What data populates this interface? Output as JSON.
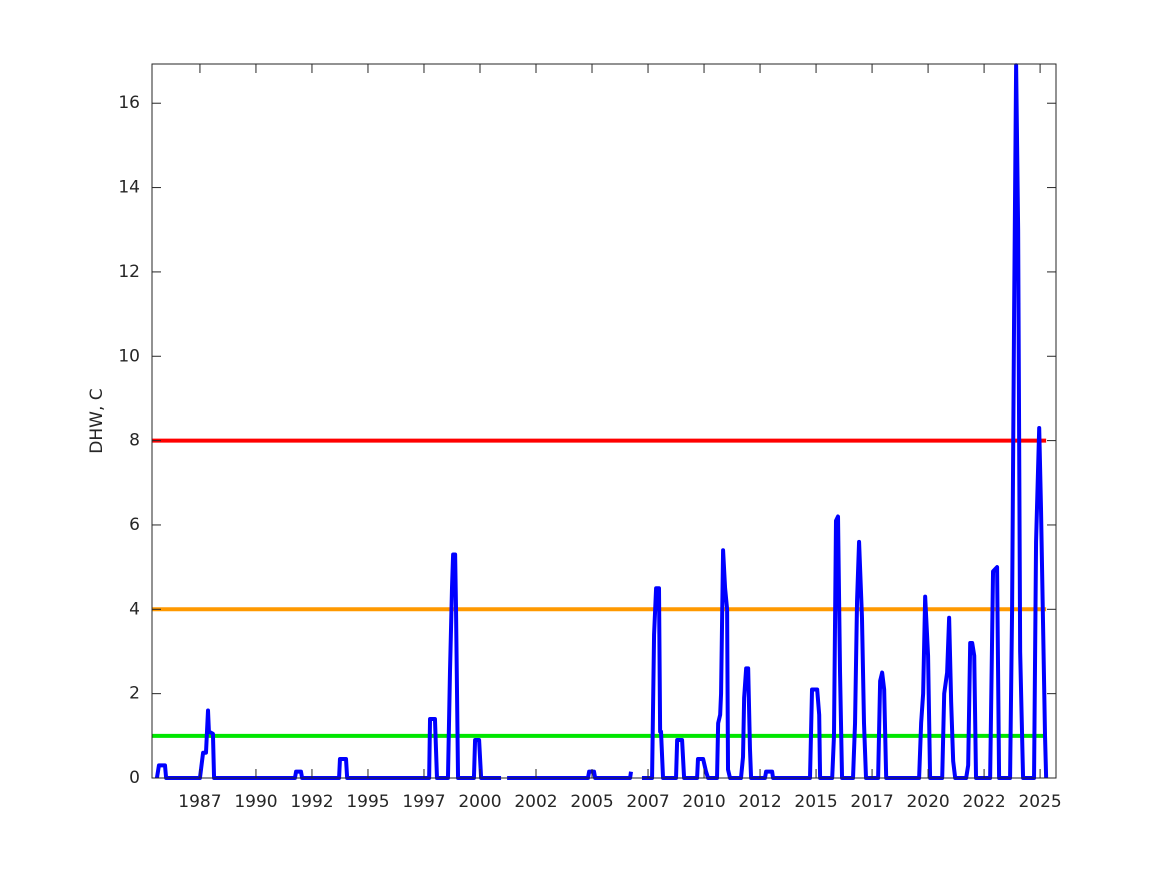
{
  "chart_data": {
    "type": "line",
    "ylabel": "DHW, C",
    "xlim": [
      1985.36,
      2025.71
    ],
    "ylim": [
      0,
      16.93
    ],
    "xticks": [
      {
        "value": 1987.5,
        "label": "1987"
      },
      1990,
      {
        "value": 1992.5,
        "label": "1992"
      },
      1995,
      {
        "value": 1997.5,
        "label": "1997"
      },
      2000,
      {
        "value": 2002.5,
        "label": "2002"
      },
      2005,
      {
        "value": 2007.5,
        "label": "2007"
      },
      2010,
      {
        "value": 2012.5,
        "label": "2012"
      },
      2015,
      {
        "value": 2017.5,
        "label": "2017"
      },
      2020,
      {
        "value": 2022.5,
        "label": "2022"
      },
      2025
    ],
    "yticks": [
      0,
      2,
      4,
      6,
      8,
      10,
      12,
      14,
      16
    ],
    "thresholds": [
      {
        "value": 1,
        "color": "#00e600"
      },
      {
        "value": 4,
        "color": "#ff9900"
      },
      {
        "value": 8,
        "color": "#ff0000"
      }
    ],
    "x": [
      1985.58,
      1985.67,
      1985.94,
      1985.99,
      1987.5,
      1987.64,
      1987.77,
      1987.86,
      1987.9,
      1988.08,
      1988.13,
      1991.74,
      1991.79,
      1992.01,
      1992.06,
      1993.71,
      1993.75,
      1994.02,
      1994.07,
      1997.73,
      1997.77,
      1997.99,
      1998.08,
      1998.57,
      1998.66,
      1998.75,
      1998.8,
      1998.89,
      1998.93,
      1999.02,
      1999.73,
      1999.78,
      1999.96,
      2000.05,
      2000.94,
      null,
      2001.21,
      2004.82,
      2004.87,
      2005.09,
      2005.14,
      2006.7,
      2006.74,
      null,
      2007.23,
      2007.68,
      2007.77,
      2007.86,
      2007.99,
      2008.04,
      2008.08,
      2008.17,
      2008.75,
      2008.8,
      2009.02,
      2009.11,
      2009.69,
      2009.73,
      2009.96,
      2010.09,
      2010.18,
      2010.58,
      2010.63,
      2010.72,
      2010.76,
      2010.85,
      2010.94,
      2011.03,
      2011.07,
      2011.16,
      2011.65,
      2011.74,
      2011.79,
      2011.88,
      2011.97,
      2012.05,
      2012.1,
      2012.72,
      2012.77,
      2013.04,
      2013.08,
      2014.73,
      2014.82,
      2015.05,
      2015.14,
      2015.18,
      2015.72,
      2015.8,
      2015.89,
      2015.98,
      2016.07,
      2016.16,
      2016.65,
      2016.74,
      2016.83,
      2016.92,
      2017.05,
      2017.14,
      2017.23,
      2017.77,
      2017.86,
      2017.95,
      2018.04,
      2018.13,
      2019.6,
      2019.69,
      2019.78,
      2019.87,
      2020.0,
      2020.09,
      2020.63,
      2020.72,
      2020.85,
      2020.94,
      2021.03,
      2021.12,
      2021.21,
      2021.7,
      2021.79,
      2021.88,
      2021.97,
      2022.06,
      2022.14,
      2022.77,
      2022.9,
      2023.08,
      2023.17,
      2023.66,
      2023.75,
      2023.84,
      2023.93,
      2024.02,
      2024.11,
      2024.24,
      2024.73,
      2024.82,
      2024.96,
      2025.04,
      2025.13,
      2025.22,
      2025.27
    ],
    "series": [
      {
        "color": "#0000ff",
        "values": [
          0,
          0.3,
          0.3,
          0,
          0,
          0.6,
          0.6,
          1.6,
          1.1,
          1.05,
          0,
          0,
          0.15,
          0.15,
          0,
          0,
          0.45,
          0.45,
          0,
          0,
          1.4,
          1.4,
          0,
          0,
          2.5,
          4.5,
          5.3,
          5.3,
          4,
          0,
          0,
          0.9,
          0.9,
          0,
          0,
          null,
          0,
          0,
          0.15,
          0.15,
          0,
          0,
          0.15,
          null,
          0,
          0,
          3.4,
          4.5,
          4.5,
          1.1,
          1.1,
          0,
          0,
          0.9,
          0.9,
          0,
          0,
          0.45,
          0.45,
          0.15,
          0,
          0,
          1.3,
          1.5,
          2,
          5.4,
          4.5,
          4,
          0.2,
          0,
          0,
          0.5,
          1.9,
          2.6,
          2.6,
          0.7,
          0,
          0,
          0.15,
          0.15,
          0,
          0,
          2.1,
          2.1,
          1.5,
          0,
          0,
          1,
          6.1,
          6.2,
          2.5,
          0,
          0,
          1.3,
          4.2,
          5.6,
          3.8,
          1.3,
          0,
          0,
          2.3,
          2.5,
          2.1,
          0,
          0,
          1.3,
          2,
          4.3,
          2.9,
          0,
          0,
          2,
          2.5,
          3.8,
          1.8,
          0.4,
          0,
          0,
          0.3,
          3.2,
          3.2,
          2.9,
          0,
          0,
          4.9,
          5,
          0,
          0,
          4,
          11,
          16.9,
          13,
          3,
          0,
          0,
          5.6,
          8.3,
          6.4,
          3.7,
          1,
          0
        ]
      }
    ]
  }
}
